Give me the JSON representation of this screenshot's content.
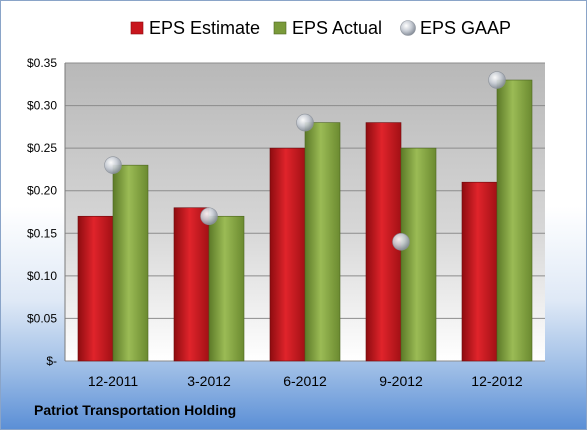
{
  "chart_data": {
    "type": "bar",
    "categories": [
      "12-2011",
      "3-2012",
      "6-2012",
      "9-2012",
      "12-2012"
    ],
    "series": [
      {
        "name": "EPS Estimate",
        "kind": "bar",
        "color": "#c8161d",
        "values": [
          0.17,
          0.18,
          0.25,
          0.28,
          0.21
        ]
      },
      {
        "name": "EPS Actual",
        "kind": "bar",
        "color": "#7a9a3a",
        "values": [
          0.23,
          0.17,
          0.28,
          0.25,
          0.33
        ]
      },
      {
        "name": "EPS GAAP",
        "kind": "scatter",
        "color": "#b9bec6",
        "values": [
          0.23,
          0.17,
          0.28,
          0.14,
          0.33
        ]
      }
    ],
    "ylim": [
      0,
      0.35
    ],
    "yticks": [
      0,
      0.05,
      0.1,
      0.15,
      0.2,
      0.25,
      0.3,
      0.35
    ],
    "ytick_labels": [
      "$-",
      "$0.05",
      "$0.10",
      "$0.15",
      "$0.20",
      "$0.25",
      "$0.30",
      "$0.35"
    ],
    "grid": true,
    "legend_position": "top"
  },
  "footer": {
    "company": "Patriot Transportation Holding"
  }
}
